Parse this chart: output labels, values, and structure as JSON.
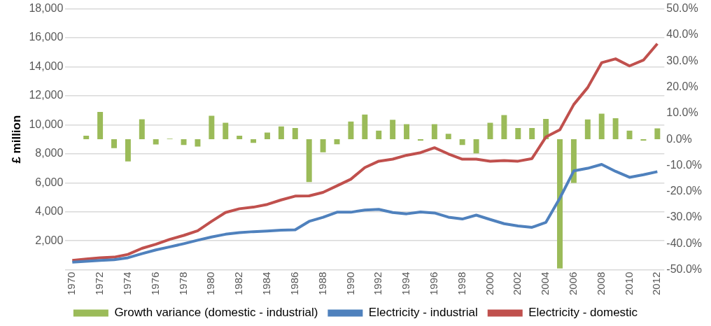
{
  "chart_data": {
    "type": "line",
    "ylabel": "£ million",
    "categories": [
      "1970",
      null,
      "1972",
      null,
      "1974",
      null,
      "1976",
      null,
      "1978",
      null,
      "1980",
      null,
      "1982",
      null,
      "1984",
      null,
      "1986",
      null,
      "1988",
      null,
      "1990",
      null,
      "1992",
      null,
      "1994",
      null,
      "1996",
      null,
      "1998",
      null,
      "2000",
      null,
      "2002",
      null,
      "2004",
      null,
      "2006",
      null,
      "2008",
      null,
      "2010",
      null,
      "2012"
    ],
    "series": [
      {
        "name": "Growth variance (domestic - industrial)",
        "type": "bar",
        "axis": "y2",
        "color": "#9bbb59",
        "values": [
          null,
          1.4,
          10.5,
          -3.4,
          -8.5,
          7.7,
          -2.0,
          0.2,
          -2.2,
          -2.8,
          9.0,
          6.3,
          1.4,
          -1.4,
          2.6,
          4.9,
          4.3,
          -16.4,
          -5.0,
          -1.9,
          6.8,
          9.5,
          3.3,
          7.5,
          5.8,
          -0.5,
          5.8,
          2.1,
          -2.2,
          -5.4,
          6.3,
          9.3,
          4.3,
          4.3,
          7.8,
          -49.5,
          -16.7,
          7.6,
          9.8,
          8.1,
          3.3,
          -0.5,
          4.2
        ]
      },
      {
        "name": "Electricity - industrial",
        "color": "#4f81bd",
        "values": [
          520,
          590,
          650,
          690,
          830,
          1110,
          1370,
          1580,
          1800,
          2040,
          2260,
          2450,
          2560,
          2630,
          2670,
          2730,
          2760,
          3340,
          3620,
          3970,
          3970,
          4120,
          4170,
          3950,
          3860,
          3990,
          3920,
          3630,
          3500,
          3770,
          3470,
          3180,
          3020,
          2930,
          3270,
          4940,
          6820,
          7000,
          7270,
          6790,
          6380,
          6560,
          6770
        ]
      },
      {
        "name": "Electricity - domestic",
        "color": "#c0504d",
        "values": [
          650,
          740,
          830,
          870,
          1060,
          1480,
          1760,
          2100,
          2370,
          2690,
          3340,
          3950,
          4210,
          4320,
          4510,
          4820,
          5080,
          5100,
          5340,
          5790,
          6250,
          7050,
          7490,
          7630,
          7900,
          8080,
          8420,
          7990,
          7630,
          7630,
          7490,
          7530,
          7490,
          7670,
          9160,
          9660,
          11400,
          12570,
          14280,
          14550,
          14060,
          14460,
          15590
        ]
      }
    ],
    "ylim": [
      0,
      18000
    ],
    "yticks": [
      {
        "value": 0,
        "label": null
      },
      {
        "value": 2000,
        "label": "2,000"
      },
      {
        "value": 4000,
        "label": "4,000"
      },
      {
        "value": 6000,
        "label": "6,000"
      },
      {
        "value": 8000,
        "label": "8,000"
      },
      {
        "value": 10000,
        "label": "10,000"
      },
      {
        "value": 12000,
        "label": "12,000"
      },
      {
        "value": 14000,
        "label": "14,000"
      },
      {
        "value": 16000,
        "label": "16,000"
      },
      {
        "value": 18000,
        "label": "18,000"
      }
    ],
    "y2lim": [
      -50,
      50
    ],
    "y2ticks": [
      {
        "value": -50,
        "label": "-50.0%"
      },
      {
        "value": -40,
        "label": "-40.0%"
      },
      {
        "value": -30,
        "label": "-30.0%"
      },
      {
        "value": -20,
        "label": "-20.0%"
      },
      {
        "value": -10,
        "label": "-10.0%"
      },
      {
        "value": 0,
        "label": "0.0%"
      },
      {
        "value": 10,
        "label": "10.0%"
      },
      {
        "value": 20,
        "label": "20.0%"
      },
      {
        "value": 30,
        "label": "30.0%"
      },
      {
        "value": 40,
        "label": "40.0%"
      },
      {
        "value": 50,
        "label": "50.0%"
      }
    ],
    "grid": "y",
    "legend": "bottom",
    "marker": "none",
    "line_style": "solid"
  }
}
